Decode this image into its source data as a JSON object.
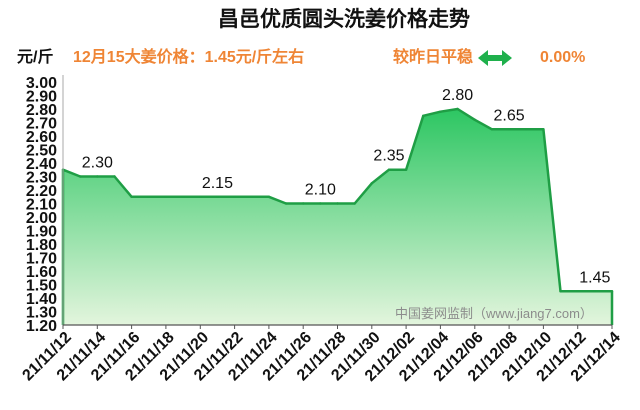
{
  "header": {
    "price_text": "12月15大姜价格：1.45元/斤左右",
    "compare_text": "较昨日平稳",
    "compare_icon": "double-arrow-icon",
    "change_pct": "0.00%"
  },
  "watermark": "中国姜网监制（www.jiang7.com）",
  "colors": {
    "accent_orange": "#ef8535",
    "arrow_green": "#1fb04c",
    "line_green": "#1f9e45",
    "fill_top": "#25c45d",
    "fill_bottom": "#e3f5dd",
    "watermark_gray": "#8c8c8c"
  },
  "chart_data": {
    "type": "area",
    "title": "昌邑优质圆头洗姜价格走势",
    "ylabel": "元/斤",
    "ylim": [
      1.2,
      3.0
    ],
    "y_ticks": [
      "1.20",
      "1.30",
      "1.40",
      "1.50",
      "1.60",
      "1.70",
      "1.80",
      "1.90",
      "2.00",
      "2.10",
      "2.20",
      "2.30",
      "2.40",
      "2.50",
      "2.60",
      "2.70",
      "2.80",
      "2.90",
      "3.00"
    ],
    "grid": false,
    "x": [
      "21/11/12",
      "21/11/13",
      "21/11/14",
      "21/11/15",
      "21/11/16",
      "21/11/17",
      "21/11/18",
      "21/11/19",
      "21/11/20",
      "21/11/21",
      "21/11/22",
      "21/11/23",
      "21/11/24",
      "21/11/25",
      "21/11/26",
      "21/11/27",
      "21/11/28",
      "21/11/29",
      "21/11/30",
      "21/12/01",
      "21/12/02",
      "21/12/03",
      "21/12/04",
      "21/12/05",
      "21/12/06",
      "21/12/07",
      "21/12/08",
      "21/12/09",
      "21/12/10",
      "21/12/11",
      "21/12/12",
      "21/12/13",
      "21/12/14"
    ],
    "series": [
      {
        "values": [
          2.35,
          2.3,
          2.3,
          2.3,
          2.15,
          2.15,
          2.15,
          2.15,
          2.15,
          2.15,
          2.15,
          2.15,
          2.15,
          2.1,
          2.1,
          2.1,
          2.1,
          2.1,
          2.25,
          2.35,
          2.35,
          2.75,
          2.78,
          2.8,
          2.72,
          2.65,
          2.65,
          2.65,
          2.65,
          1.45,
          1.45,
          1.45,
          1.45
        ]
      }
    ],
    "data_labels": [
      {
        "x": "21/11/14",
        "text": "2.30"
      },
      {
        "x": "21/11/21",
        "text": "2.15"
      },
      {
        "x": "21/11/27",
        "text": "2.10"
      },
      {
        "x": "21/12/01",
        "text": "2.35"
      },
      {
        "x": "21/12/05",
        "text": "2.80"
      },
      {
        "x": "21/12/08",
        "text": "2.65"
      },
      {
        "x": "21/12/13",
        "text": "1.45"
      }
    ]
  }
}
